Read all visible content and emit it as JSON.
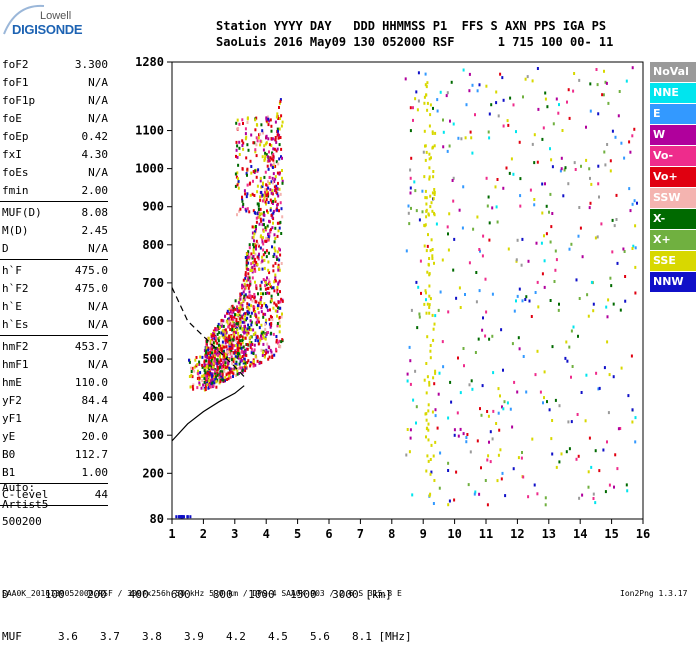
{
  "logo": {
    "line1": "Lowell",
    "line2": "DIGISONDE"
  },
  "header": {
    "line1": "Station YYYY DAY   DDD HHMMSS P1  FFS S AXN PPS IGA PS",
    "line2": "SaoLuis 2016 May09 130 052000 RSF      1 715 100 00- 11"
  },
  "params": {
    "g1": [
      {
        "n": "foF2",
        "v": "3.300"
      },
      {
        "n": "foF1",
        "v": "N/A"
      },
      {
        "n": "foF1p",
        "v": "N/A"
      },
      {
        "n": "foE",
        "v": "N/A"
      },
      {
        "n": "foEp",
        "v": "0.42"
      },
      {
        "n": "fxI",
        "v": "4.30"
      },
      {
        "n": "foEs",
        "v": "N/A"
      },
      {
        "n": "fmin",
        "v": "2.00"
      }
    ],
    "g2": [
      {
        "n": "MUF(D)",
        "v": "8.08"
      },
      {
        "n": "M(D)",
        "v": "2.45"
      },
      {
        "n": "D",
        "v": "N/A"
      }
    ],
    "g3": [
      {
        "n": "h`F",
        "v": "475.0"
      },
      {
        "n": "h`F2",
        "v": "475.0"
      },
      {
        "n": "h`E",
        "v": "N/A"
      },
      {
        "n": "h`Es",
        "v": "N/A"
      }
    ],
    "g4": [
      {
        "n": "hmF2",
        "v": "453.7"
      },
      {
        "n": "hmF1",
        "v": "N/A"
      },
      {
        "n": "hmE",
        "v": "110.0"
      },
      {
        "n": "yF2",
        "v": "84.4"
      },
      {
        "n": "yF1",
        "v": "N/A"
      },
      {
        "n": "yE",
        "v": "20.0"
      },
      {
        "n": "B0",
        "v": "112.7"
      },
      {
        "n": "B1",
        "v": "1.00"
      }
    ],
    "g5": [
      {
        "n": "C-level",
        "v": "44"
      }
    ]
  },
  "auto": {
    "l1": "Auto:",
    "l2": "Artist5",
    "l3": "500200"
  },
  "legend": [
    {
      "label": "NoVal",
      "color": "#9a9a9a"
    },
    {
      "label": "NNE",
      "color": "#00e5ee"
    },
    {
      "label": "E",
      "color": "#3399ff"
    },
    {
      "label": "W",
      "color": "#b0009c"
    },
    {
      "label": "Vo-",
      "color": "#ee2c8c"
    },
    {
      "label": "Vo+",
      "color": "#e00010"
    },
    {
      "label": "SSW",
      "color": "#f4b4b0"
    },
    {
      "label": "X-",
      "color": "#006a00"
    },
    {
      "label": "X+",
      "color": "#70b040"
    },
    {
      "label": "SSE",
      "color": "#d8d800"
    },
    {
      "label": "NNW",
      "color": "#1010c8"
    }
  ],
  "chart_data": {
    "type": "scatter",
    "xlim": [
      1,
      16
    ],
    "ylim": [
      80,
      1280
    ],
    "x_ticks": [
      1,
      2,
      3,
      4,
      5,
      6,
      7,
      8,
      9,
      10,
      11,
      12,
      13,
      14,
      15,
      16
    ],
    "y_ticks": [
      80,
      200,
      300,
      400,
      500,
      600,
      700,
      800,
      900,
      1000,
      1100,
      1280
    ],
    "grid": false,
    "legend_position": "right",
    "profile_solid": [
      [
        1.0,
        285
      ],
      [
        1.5,
        330
      ],
      [
        2.0,
        362
      ],
      [
        2.5,
        388
      ],
      [
        3.0,
        410
      ],
      [
        3.3,
        430
      ]
    ],
    "profile_dashed": [
      [
        1.0,
        688
      ],
      [
        1.5,
        600
      ],
      [
        2.0,
        560
      ],
      [
        2.5,
        520
      ],
      [
        3.0,
        480
      ],
      [
        3.3,
        453.7
      ]
    ]
  },
  "dmuf": {
    "d_label": "D",
    "d_values": [
      "100",
      "200",
      "400",
      "600",
      "800",
      "1000",
      "1500",
      "3000"
    ],
    "d_unit": "[km]",
    "muf_label": "MUF",
    "muf_values": [
      "3.6",
      "3.7",
      "3.8",
      "3.9",
      "4.2",
      "4.5",
      "5.6",
      "8.1"
    ],
    "muf_unit": "[MHz]"
  },
  "footer": {
    "text": "SAA0K_2016130052000.RSF / 300fx256h 50 kHz 5.0 km / DPS-4 SAA0K 903 / 2.6 S 315.8 E",
    "version": "Ion2Png 1.3.17"
  }
}
